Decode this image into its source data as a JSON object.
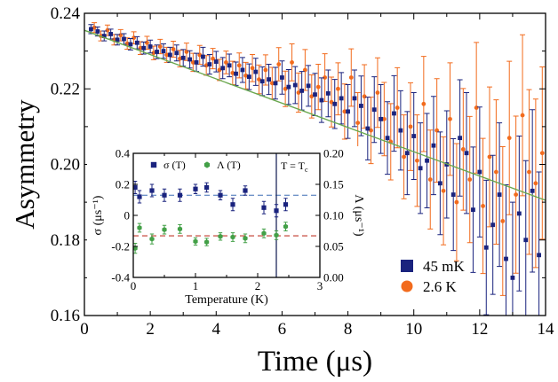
{
  "chart_data": [
    {
      "type": "scatter",
      "xlabel": "Time (μs)",
      "ylabel": "Asymmetry",
      "xlim": [
        0,
        14
      ],
      "ylim": [
        0.16,
        0.24
      ],
      "xticks": [
        "0",
        "2",
        "4",
        "6",
        "8",
        "10",
        "12",
        "14"
      ],
      "yticks": [
        "0.16",
        "0.18",
        "0.20",
        "0.22",
        "0.24"
      ],
      "legend_position": "bottom-right",
      "fit_line": {
        "color": "#6aa84f",
        "x": [
          0,
          14
        ],
        "y": [
          0.2355,
          0.1905
        ]
      },
      "series": [
        {
          "name": "45 mK",
          "color": "#1a237e",
          "marker": "square",
          "x": [
            0.2,
            0.4,
            0.6,
            0.8,
            1.0,
            1.2,
            1.4,
            1.6,
            1.8,
            2.0,
            2.2,
            2.4,
            2.6,
            2.8,
            3.0,
            3.2,
            3.4,
            3.6,
            3.8,
            4.0,
            4.2,
            4.4,
            4.6,
            4.8,
            5.0,
            5.2,
            5.4,
            5.6,
            5.8,
            6.0,
            6.2,
            6.4,
            6.6,
            6.8,
            7.0,
            7.2,
            7.4,
            7.6,
            7.8,
            8.0,
            8.2,
            8.4,
            8.6,
            8.8,
            9.0,
            9.2,
            9.4,
            9.6,
            9.8,
            10.0,
            10.2,
            10.4,
            10.6,
            10.8,
            11.0,
            11.2,
            11.4,
            11.6,
            11.8,
            12.0,
            12.2,
            12.4,
            12.6,
            12.8,
            13.0,
            13.2,
            13.4,
            13.6,
            13.8
          ],
          "y": [
            0.2358,
            0.2352,
            0.234,
            0.2345,
            0.233,
            0.2332,
            0.2318,
            0.2322,
            0.2308,
            0.2312,
            0.2298,
            0.23,
            0.229,
            0.2295,
            0.2282,
            0.2278,
            0.227,
            0.2285,
            0.2265,
            0.2272,
            0.2255,
            0.2262,
            0.224,
            0.225,
            0.2232,
            0.2245,
            0.222,
            0.2225,
            0.2215,
            0.223,
            0.2205,
            0.221,
            0.2195,
            0.2208,
            0.2185,
            0.217,
            0.2188,
            0.216,
            0.2175,
            0.214,
            0.2175,
            0.2155,
            0.2095,
            0.2145,
            0.212,
            0.207,
            0.2135,
            0.209,
            0.203,
            0.2075,
            0.199,
            0.201,
            0.205,
            0.195,
            0.2,
            0.192,
            0.207,
            0.203,
            0.188,
            0.198,
            0.178,
            0.184,
            0.192,
            0.175,
            0.17,
            0.187,
            0.18,
            0.193,
            0.176
          ],
          "err": [
            0.0012,
            0.0012,
            0.0013,
            0.0013,
            0.0014,
            0.0014,
            0.0015,
            0.0016,
            0.0016,
            0.0017,
            0.0018,
            0.0019,
            0.002,
            0.0021,
            0.0022,
            0.0023,
            0.0024,
            0.0025,
            0.0026,
            0.0027,
            0.0028,
            0.003,
            0.0031,
            0.0033,
            0.0034,
            0.0036,
            0.0038,
            0.004,
            0.0042,
            0.0044,
            0.0046,
            0.0049,
            0.0051,
            0.0054,
            0.0056,
            0.0059,
            0.0062,
            0.0065,
            0.0068,
            0.0071,
            0.0075,
            0.0079,
            0.0083,
            0.0087,
            0.0091,
            0.0096,
            0.01,
            0.0105,
            0.011,
            0.0115,
            0.012,
            0.0125,
            0.013,
            0.0136,
            0.0142,
            0.0148,
            0.0154,
            0.016,
            0.0166,
            0.0172,
            0.0178,
            0.0184,
            0.019,
            0.0196,
            0.02,
            0.0205,
            0.021,
            0.0215,
            0.022
          ]
        },
        {
          "name": "2.6 K",
          "color": "#f26b1d",
          "marker": "circle",
          "x": [
            0.3,
            0.5,
            0.7,
            0.9,
            1.1,
            1.3,
            1.5,
            1.7,
            1.9,
            2.1,
            2.3,
            2.5,
            2.7,
            2.9,
            3.1,
            3.3,
            3.5,
            3.7,
            3.9,
            4.1,
            4.3,
            4.5,
            4.7,
            4.9,
            5.1,
            5.3,
            5.5,
            5.7,
            5.9,
            6.1,
            6.3,
            6.5,
            6.7,
            6.9,
            7.1,
            7.3,
            7.5,
            7.7,
            7.9,
            8.1,
            8.3,
            8.5,
            8.7,
            8.9,
            9.1,
            9.3,
            9.5,
            9.7,
            9.9,
            10.1,
            10.3,
            10.5,
            10.7,
            10.9,
            11.1,
            11.3,
            11.5,
            11.7,
            11.9,
            12.1,
            12.3,
            12.5,
            12.7,
            12.9,
            13.1,
            13.3,
            13.5,
            13.7,
            13.9
          ],
          "y": [
            0.2362,
            0.234,
            0.2355,
            0.233,
            0.2342,
            0.232,
            0.2335,
            0.2308,
            0.2322,
            0.2295,
            0.2312,
            0.229,
            0.2305,
            0.228,
            0.2298,
            0.227,
            0.229,
            0.2262,
            0.228,
            0.225,
            0.227,
            0.2242,
            0.2262,
            0.2235,
            0.2255,
            0.2225,
            0.225,
            0.2215,
            0.2265,
            0.22,
            0.227,
            0.219,
            0.225,
            0.218,
            0.2205,
            0.223,
            0.2165,
            0.22,
            0.214,
            0.223,
            0.211,
            0.218,
            0.209,
            0.219,
            0.212,
            0.206,
            0.215,
            0.202,
            0.21,
            0.201,
            0.216,
            0.196,
            0.209,
            0.193,
            0.212,
            0.19,
            0.204,
            0.196,
            0.215,
            0.189,
            0.202,
            0.198,
            0.185,
            0.207,
            0.192,
            0.213,
            0.198,
            0.195,
            0.203
          ],
          "err": [
            0.0013,
            0.0013,
            0.0014,
            0.0014,
            0.0015,
            0.0015,
            0.0016,
            0.0017,
            0.0017,
            0.0018,
            0.0019,
            0.002,
            0.0021,
            0.0022,
            0.0023,
            0.0024,
            0.0025,
            0.0026,
            0.0027,
            0.0028,
            0.003,
            0.0031,
            0.0033,
            0.0035,
            0.0036,
            0.0038,
            0.004,
            0.0042,
            0.0044,
            0.0047,
            0.0049,
            0.0052,
            0.0054,
            0.0057,
            0.006,
            0.0063,
            0.0066,
            0.0069,
            0.0073,
            0.0076,
            0.008,
            0.0084,
            0.0088,
            0.0092,
            0.0097,
            0.0101,
            0.0106,
            0.0111,
            0.0116,
            0.0121,
            0.0126,
            0.0131,
            0.0137,
            0.0143,
            0.0149,
            0.0155,
            0.0161,
            0.0167,
            0.0173,
            0.0179,
            0.0185,
            0.0191,
            0.0197,
            0.0203,
            0.0208,
            0.0213,
            0.0218,
            0.0223,
            0.0228
          ]
        }
      ]
    },
    {
      "type": "scatter",
      "xlabel": "Temperature (K)",
      "ylabel": "σ (μs⁻¹)",
      "ylabel_right": "Λ (μs⁻¹)",
      "xlim": [
        0,
        3
      ],
      "ylim": [
        -0.4,
        0.4
      ],
      "ylim_right": [
        0,
        0.2
      ],
      "xticks": [
        "0",
        "1",
        "2",
        "3"
      ],
      "yticks": [
        "-0.4",
        "-0.2",
        "0",
        "0.2",
        "0.4"
      ],
      "yticks_right": [
        "0.00",
        "0.05",
        "0.10",
        "0.15",
        "0.20"
      ],
      "annotation": "T = T",
      "annotation_sub": "c",
      "vline_x": 2.3,
      "legend_position": "top-left",
      "hlines": [
        {
          "series": "σ (T)",
          "axis": "left",
          "value": 0.13,
          "color": "#3d6db5"
        },
        {
          "series": "Λ (T)",
          "axis": "right",
          "value": 0.067,
          "color": "#c0392b"
        }
      ],
      "series": [
        {
          "name": "σ (T)",
          "axis": "left",
          "color": "#1a237e",
          "marker": "square",
          "x": [
            0.03,
            0.1,
            0.3,
            0.5,
            0.75,
            1.0,
            1.18,
            1.4,
            1.6,
            1.8,
            2.1,
            2.3,
            2.45
          ],
          "y": [
            0.18,
            0.12,
            0.16,
            0.13,
            0.13,
            0.17,
            0.18,
            0.13,
            0.07,
            0.16,
            0.05,
            0.03,
            0.07
          ],
          "err": [
            0.04,
            0.04,
            0.04,
            0.04,
            0.04,
            0.03,
            0.03,
            0.03,
            0.04,
            0.03,
            0.04,
            0.04,
            0.04
          ]
        },
        {
          "name": "Λ (T)",
          "axis": "right",
          "color": "#43a047",
          "marker": "hexagon",
          "x": [
            0.03,
            0.1,
            0.3,
            0.5,
            0.75,
            1.0,
            1.18,
            1.4,
            1.6,
            1.8,
            2.1,
            2.3,
            2.45
          ],
          "y": [
            0.047,
            0.08,
            0.062,
            0.077,
            0.078,
            0.058,
            0.057,
            0.066,
            0.065,
            0.063,
            0.071,
            0.068,
            0.082
          ],
          "err": [
            0.008,
            0.007,
            0.008,
            0.007,
            0.007,
            0.006,
            0.006,
            0.006,
            0.007,
            0.007,
            0.007,
            0.007,
            0.007
          ]
        }
      ]
    }
  ]
}
